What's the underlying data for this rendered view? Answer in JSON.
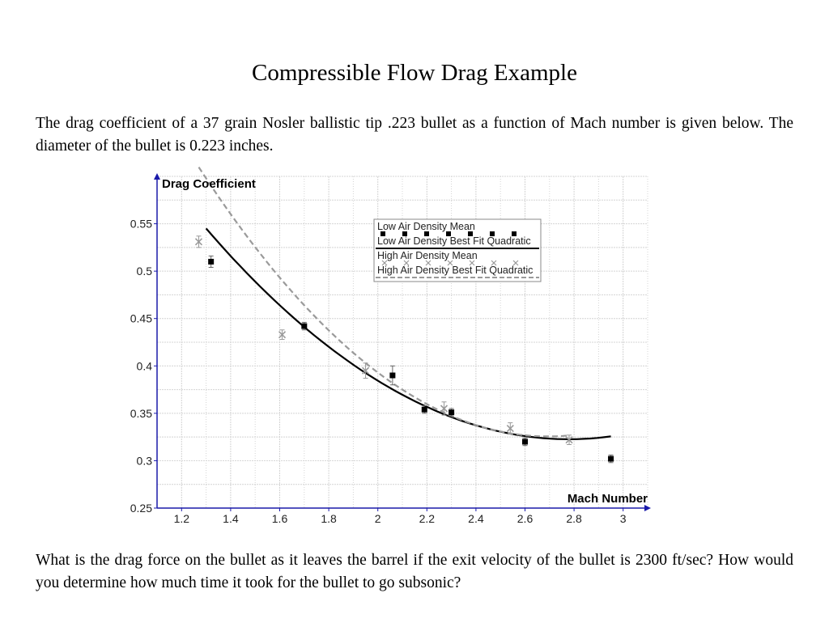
{
  "title": "Compressible Flow Drag Example",
  "intro": "The drag coefficient of a 37 grain Nosler ballistic tip .223 bullet as a function of Mach number is given below.  The diameter of the bullet is 0.223 inches.",
  "question": "What is the drag force on the bullet as it leaves the barrel if the exit velocity of the bullet is 2300 ft/sec?  How would you determine how much time it took for the bullet to go subsonic?",
  "chart_data": {
    "type": "scatter",
    "xlabel": "Mach Number",
    "ylabel": "Drag Coefficient",
    "xlim": [
      1.1,
      3.1
    ],
    "ylim": [
      0.25,
      0.6
    ],
    "xticks": [
      "1.2",
      "1.4",
      "1.6",
      "1.8",
      "2",
      "2.2",
      "2.4",
      "2.6",
      "2.8",
      "3"
    ],
    "yticks": [
      "0.25",
      "0.3",
      "0.35",
      "0.4",
      "0.45",
      "0.5",
      "0.55"
    ],
    "grid": true,
    "legend": "top-center",
    "colors": {
      "low": "#000000",
      "high": "#9a9a9a",
      "axis": "#1a1aaa",
      "grid": "#d4d4d4"
    },
    "series": [
      {
        "name": "Low Air Density Mean",
        "marker": "square",
        "points": [
          {
            "x": 1.32,
            "y": 0.51,
            "err": 0.006
          },
          {
            "x": 1.7,
            "y": 0.442,
            "err": 0.004
          },
          {
            "x": 2.06,
            "y": 0.39,
            "err": 0.01
          },
          {
            "x": 2.19,
            "y": 0.354,
            "err": 0.004
          },
          {
            "x": 2.3,
            "y": 0.351,
            "err": 0.004
          },
          {
            "x": 2.6,
            "y": 0.32,
            "err": 0.004
          },
          {
            "x": 2.95,
            "y": 0.302,
            "err": 0.004
          }
        ]
      },
      {
        "name": "Low Air Density Best Fit Quadratic",
        "line": "solid",
        "fit": [
          0.1016,
          -0.5648,
          1.1076
        ],
        "range": [
          1.3,
          2.95
        ]
      },
      {
        "name": "High Air Density Mean",
        "marker": "x",
        "points": [
          {
            "x": 1.27,
            "y": 0.531,
            "err": 0.006
          },
          {
            "x": 1.61,
            "y": 0.433,
            "err": 0.005
          },
          {
            "x": 1.95,
            "y": 0.395,
            "err": 0.008
          },
          {
            "x": 2.27,
            "y": 0.355,
            "err": 0.007
          },
          {
            "x": 2.54,
            "y": 0.334,
            "err": 0.006
          },
          {
            "x": 2.78,
            "y": 0.322,
            "err": 0.005
          }
        ]
      },
      {
        "name": "High Air Density Best Fit Quadratic",
        "line": "dashed",
        "fit": [
          0.1403,
          -0.7557,
          1.3432
        ],
        "range": [
          1.27,
          2.78
        ]
      }
    ]
  }
}
